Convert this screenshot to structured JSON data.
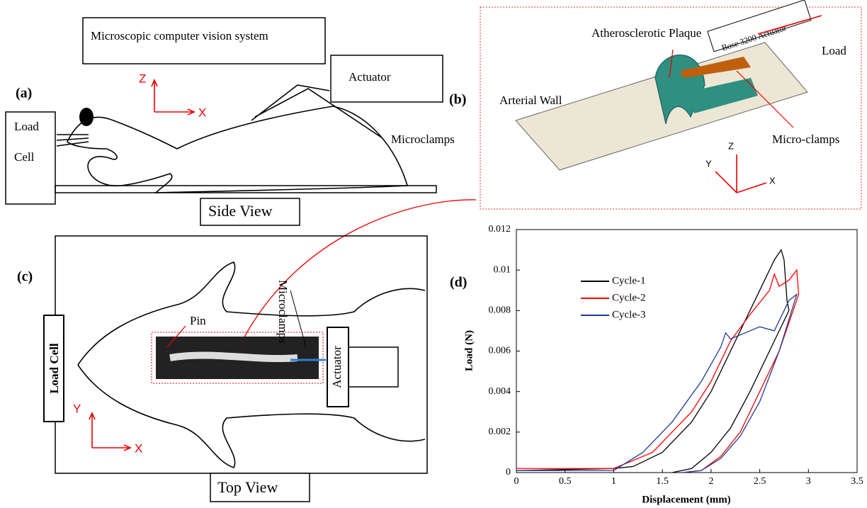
{
  "panel_a": {
    "label": "(a)",
    "vision_box": "Microscopic computer vision system",
    "actuator": "Actuator",
    "load_cell_1": "Load",
    "load_cell_2": "Cell",
    "microclamps": "Microclamps",
    "axis_z": "Z",
    "axis_x": "X",
    "view": "Side View"
  },
  "panel_b": {
    "label": "(b)",
    "arterial_wall": "Arterial Wall",
    "plaque": "Atherosclerotic Plaque",
    "actuator": "Bose 3200 Actuator",
    "load": "Load",
    "micro_clamps": "Micro-clamps",
    "axis_z": "Z",
    "axis_y": "Y",
    "axis_x": "X"
  },
  "panel_c": {
    "label": "(c)",
    "load_cell": "Load Cell",
    "pin": "Pin",
    "microclamps": "Microclamps",
    "actuator": "Actuator",
    "axis_y": "Y",
    "axis_x": "X",
    "view": "Top View"
  },
  "chart_data": {
    "type": "line",
    "panel_label": "(d)",
    "x_label": "Displacement (mm)",
    "y_label": "Load (N)",
    "xlim": [
      0,
      3.5
    ],
    "xticks": [
      0,
      0.5,
      1,
      1.5,
      2,
      2.5,
      3,
      3.5
    ],
    "ylim": [
      0,
      0.012
    ],
    "yticks": [
      0,
      0.002,
      0.004,
      0.006,
      0.008,
      0.01,
      0.012
    ],
    "series": [
      {
        "name": "Cycle-1",
        "color": "#000000",
        "x": [
          0,
          1.0,
          1.2,
          1.5,
          1.8,
          2.0,
          2.2,
          2.4,
          2.55,
          2.65,
          2.72,
          2.75,
          2.78,
          2.8,
          2.6,
          2.4,
          2.2,
          2.0,
          1.8,
          1.6
        ],
        "values": [
          0.0001,
          0.0002,
          0.0003,
          0.001,
          0.0025,
          0.004,
          0.006,
          0.008,
          0.0095,
          0.0105,
          0.011,
          0.0105,
          0.0085,
          0.008,
          0.006,
          0.004,
          0.0022,
          0.001,
          0.0002,
          0
        ]
      },
      {
        "name": "Cycle-2",
        "color": "#ff0000",
        "x": [
          0,
          1.0,
          1.4,
          1.8,
          2.0,
          2.2,
          2.4,
          2.6,
          2.65,
          2.7,
          2.8,
          2.88,
          2.9,
          2.7,
          2.5,
          2.3,
          2.1,
          1.9,
          1.7
        ],
        "values": [
          0.0002,
          0.0002,
          0.001,
          0.003,
          0.0045,
          0.0065,
          0.0078,
          0.009,
          0.0098,
          0.0092,
          0.0095,
          0.01,
          0.0088,
          0.006,
          0.004,
          0.002,
          0.0008,
          0.0001,
          0
        ]
      },
      {
        "name": "Cycle-3",
        "color": "#1f3a93",
        "x": [
          0,
          1.0,
          1.3,
          1.6,
          1.9,
          2.1,
          2.15,
          2.2,
          2.4,
          2.5,
          2.65,
          2.8,
          2.88,
          2.7,
          2.5,
          2.3,
          2.1,
          1.9,
          1.7
        ],
        "values": [
          0.0001,
          0.0001,
          0.001,
          0.0025,
          0.0045,
          0.0062,
          0.0069,
          0.0066,
          0.007,
          0.0072,
          0.007,
          0.0085,
          0.0088,
          0.006,
          0.0035,
          0.0018,
          0.0007,
          0.0001,
          0
        ]
      }
    ]
  }
}
